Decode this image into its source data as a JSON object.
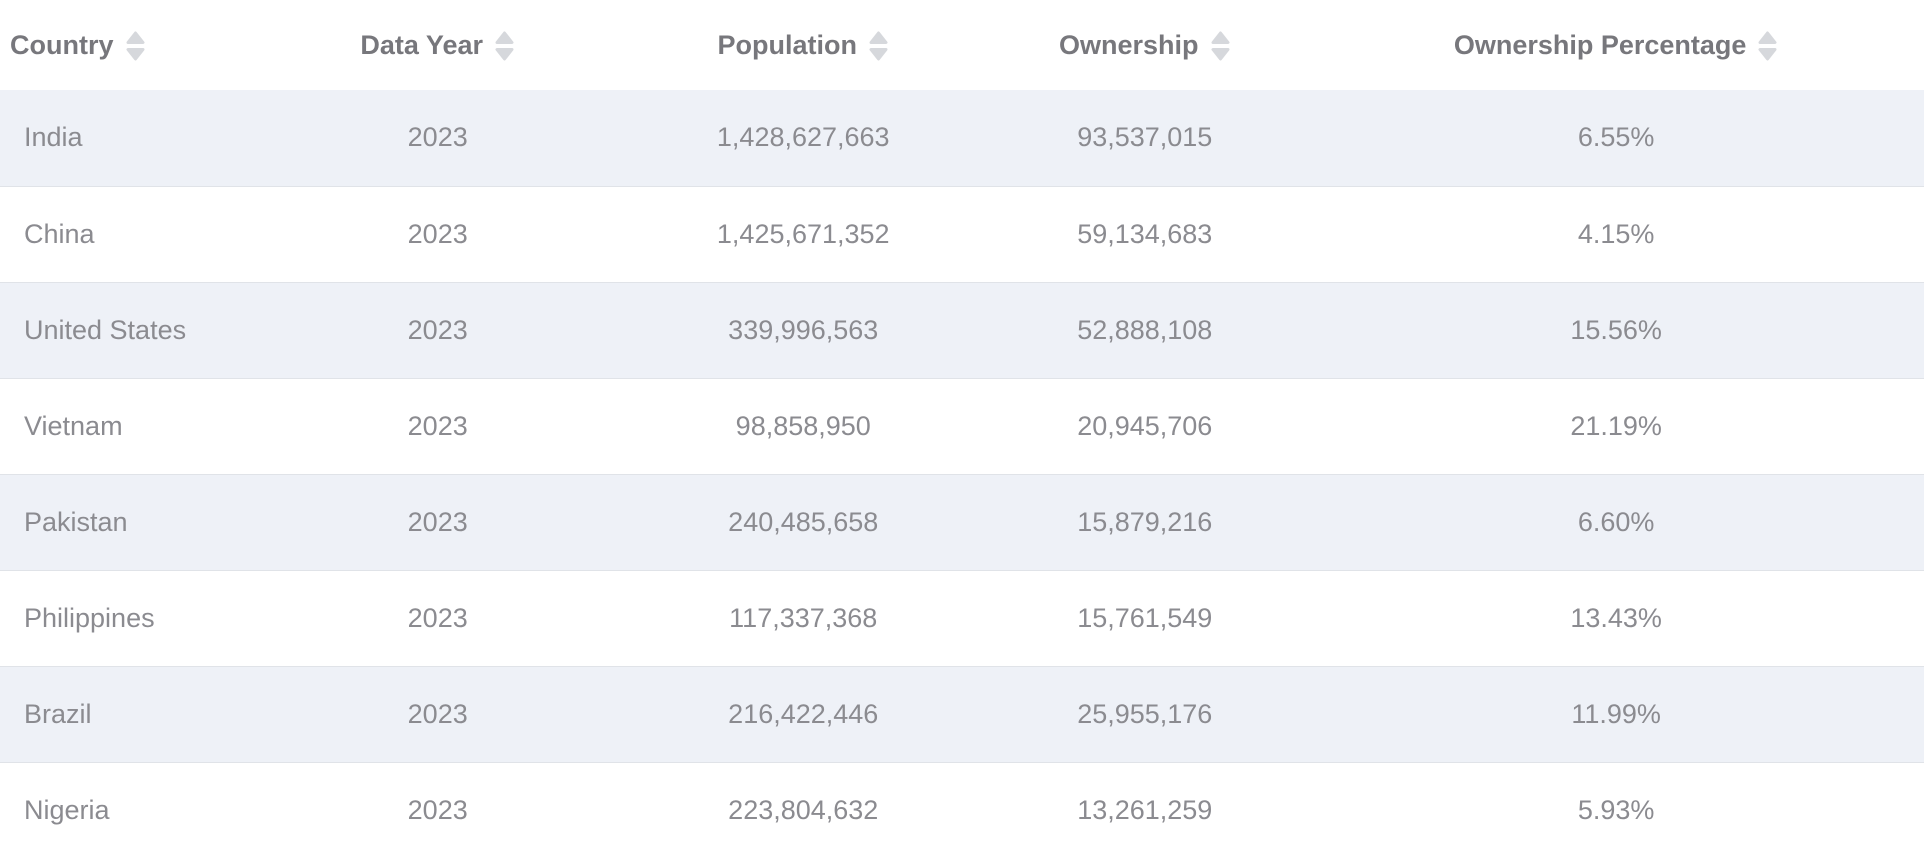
{
  "colors": {
    "page_bg": "#ffffff",
    "header_text": "#77777c",
    "body_text": "#8b8b90",
    "row_alt_bg": "#eef1f7",
    "row_border": "#e0e3e8",
    "sort_icon": "#d6d8dc"
  },
  "table": {
    "columns": [
      {
        "id": "country",
        "label": "Country",
        "sortable": true
      },
      {
        "id": "data-year",
        "label": "Data Year",
        "sortable": true
      },
      {
        "id": "population",
        "label": "Population",
        "sortable": true
      },
      {
        "id": "ownership",
        "label": "Ownership",
        "sortable": true
      },
      {
        "id": "ownership-percentage",
        "label": "Ownership Percentage",
        "sortable": true
      }
    ],
    "rows": [
      [
        "India",
        "2023",
        "1,428,627,663",
        "93,537,015",
        "6.55%"
      ],
      [
        "China",
        "2023",
        "1,425,671,352",
        "59,134,683",
        "4.15%"
      ],
      [
        "United States",
        "2023",
        "339,996,563",
        "52,888,108",
        "15.56%"
      ],
      [
        "Vietnam",
        "2023",
        "98,858,950",
        "20,945,706",
        "21.19%"
      ],
      [
        "Pakistan",
        "2023",
        "240,485,658",
        "15,879,216",
        "6.60%"
      ],
      [
        "Philippines",
        "2023",
        "117,337,368",
        "15,761,549",
        "13.43%"
      ],
      [
        "Brazil",
        "2023",
        "216,422,446",
        "25,955,176",
        "11.99%"
      ],
      [
        "Nigeria",
        "2023",
        "223,804,632",
        "13,261,259",
        "5.93%"
      ]
    ]
  }
}
